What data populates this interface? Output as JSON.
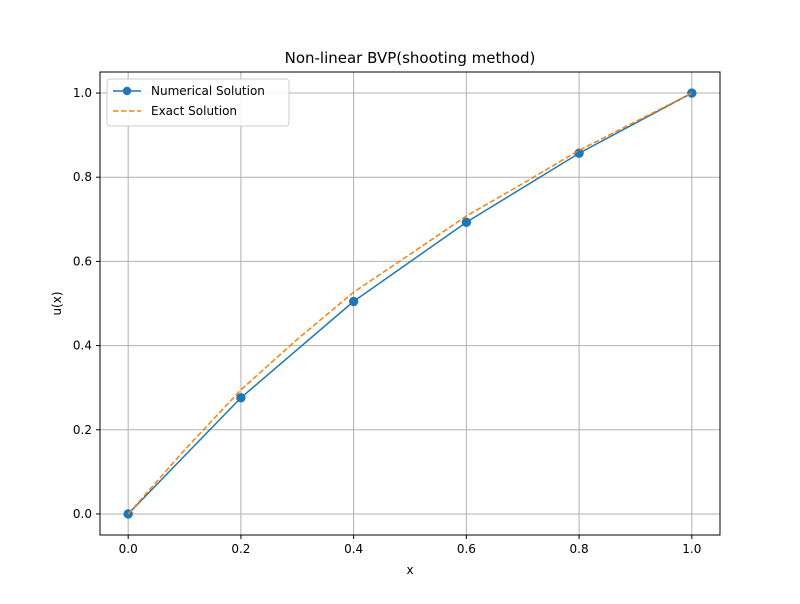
{
  "chart_data": {
    "type": "line",
    "title": "Non-linear BVP(shooting method)",
    "xlabel": "x",
    "ylabel": "u(x)",
    "xlim": [
      -0.05,
      1.05
    ],
    "ylim": [
      -0.05,
      1.05
    ],
    "xticks": [
      "0.0",
      "0.2",
      "0.4",
      "0.6",
      "0.8",
      "1.0"
    ],
    "yticks": [
      "0.0",
      "0.2",
      "0.4",
      "0.6",
      "0.8",
      "1.0"
    ],
    "grid": true,
    "legend_position": "upper-left",
    "series": [
      {
        "name": "Numerical Solution",
        "style": "solid",
        "marker": "circle",
        "color": "#1f77b4",
        "x": [
          0.0,
          0.2,
          0.4,
          0.6,
          0.8,
          1.0
        ],
        "y": [
          0.0,
          0.276,
          0.505,
          0.693,
          0.857,
          1.0
        ]
      },
      {
        "name": "Exact Solution",
        "style": "dashed",
        "marker": "none",
        "color": "#ff7f0e",
        "x": [
          0.0,
          0.1,
          0.2,
          0.3,
          0.4,
          0.5,
          0.6,
          0.7,
          0.8,
          0.9,
          1.0
        ],
        "y": [
          0.0,
          0.152,
          0.295,
          0.415,
          0.527,
          0.617,
          0.708,
          0.785,
          0.864,
          0.932,
          1.0
        ]
      }
    ]
  }
}
